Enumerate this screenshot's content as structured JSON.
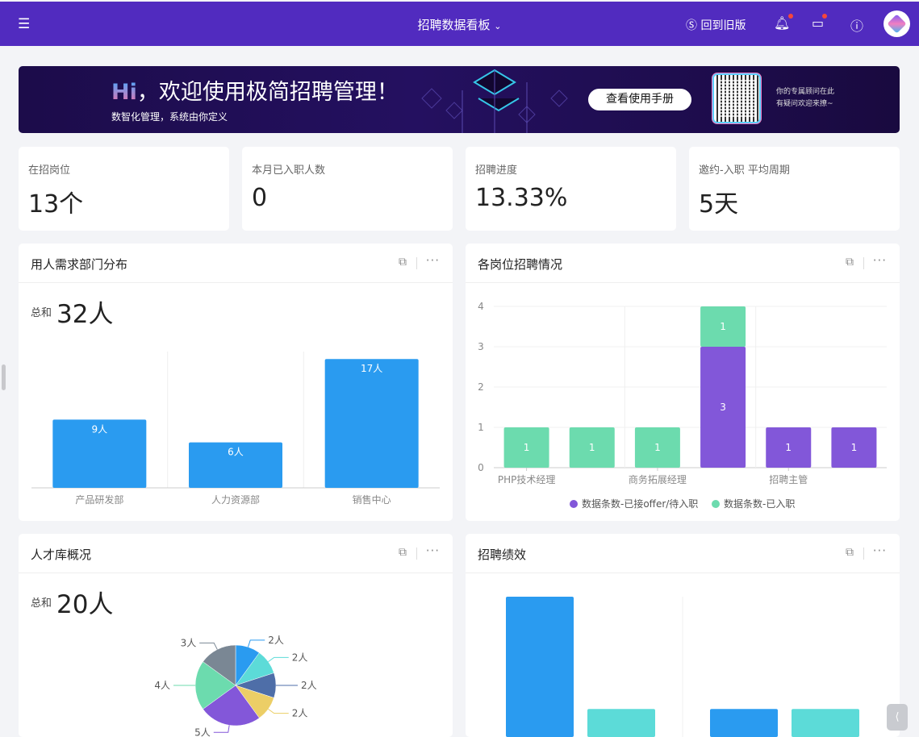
{
  "topbar": {
    "menu_icon": "hamburger-icon",
    "title": "招聘数据看板",
    "old_version": "回到旧版",
    "icons": [
      "bell-icon",
      "briefcase-icon",
      "help-icon"
    ]
  },
  "banner": {
    "hi": "Hi",
    "greeting": "，欢迎使用极简招聘管理！",
    "subtitle": "数智化管理，系统由你定义",
    "button": "查看使用手册",
    "adviser_line1": "你的专属顾问在此",
    "adviser_line2": "有疑问欢迎来撩~"
  },
  "stats": [
    {
      "label": "在招岗位",
      "value": "13个"
    },
    {
      "label": "本月已入职人数",
      "value": "0"
    },
    {
      "label": "招聘进度",
      "value": "13.33%"
    },
    {
      "label": "邀约-入职 平均周期",
      "value": "5天"
    }
  ],
  "cards": {
    "dept": {
      "title": "用人需求部门分布",
      "sum_label": "总和",
      "sum_value": "32人"
    },
    "position": {
      "title": "各岗位招聘情况"
    },
    "talent": {
      "title": "人才库概况",
      "sum_label": "总和",
      "sum_value": "20人"
    },
    "performance": {
      "title": "招聘绩效"
    }
  },
  "chart_data": [
    {
      "type": "bar",
      "categories": [
        "产品研发部",
        "人力资源部",
        "销售中心"
      ],
      "values": [
        9,
        6,
        17
      ],
      "labels": [
        "9人",
        "6人",
        "17人"
      ],
      "color": "#2a9bf0"
    },
    {
      "type": "bar",
      "stacked": true,
      "categories": [
        "PHP技术经理",
        "",
        "商务拓展经理",
        "",
        "招聘主管",
        ""
      ],
      "yticks": [
        "0",
        "1",
        "2",
        "3",
        "4"
      ],
      "ylim": [
        0,
        4
      ],
      "series": [
        {
          "name": "数据条数-已接offer/待入职",
          "values": [
            0,
            0,
            0,
            3,
            1,
            1
          ],
          "color": "#8257d9"
        },
        {
          "name": "数据条数-已入职",
          "values": [
            1,
            1,
            1,
            1,
            0,
            0
          ],
          "color": "#6cdbae"
        }
      ],
      "legend": "bottom"
    },
    {
      "type": "pie",
      "values": [
        2,
        2,
        2,
        2,
        5,
        4,
        3
      ],
      "labels": [
        "2人",
        "2人",
        "2人",
        "2人",
        "5人",
        "4人",
        "3人"
      ],
      "colors": [
        "#2a9bf0",
        "#5cdbd8",
        "#4e6ea8",
        "#ecce66",
        "#8357d9",
        "#6cdbae",
        "#7a8794"
      ]
    },
    {
      "type": "bar",
      "values": [
        [
          10,
          2
        ],
        [
          2,
          2
        ]
      ],
      "colors": [
        "#2a9bf0",
        "#5cdbd8"
      ]
    }
  ]
}
